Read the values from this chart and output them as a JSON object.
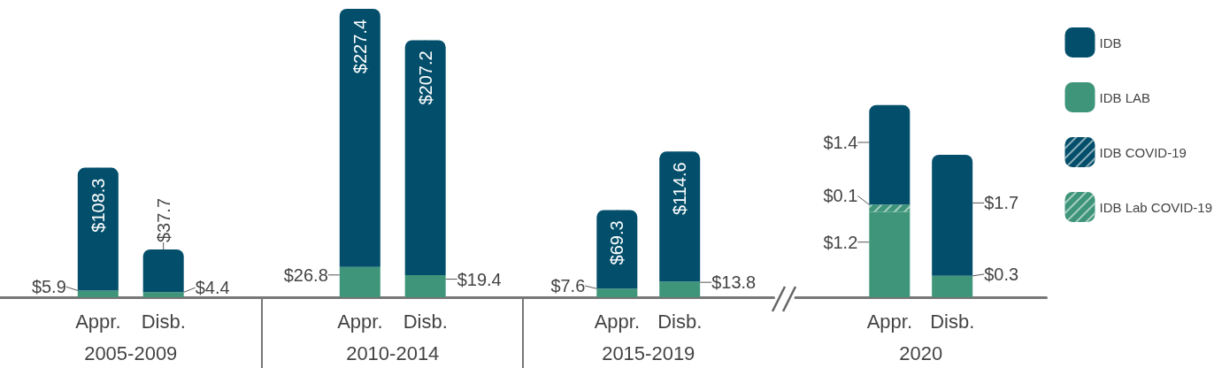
{
  "chart_data": [
    {
      "type": "bar",
      "stacked": true,
      "xlabel": "2005-2009",
      "categories": [
        "Appr.",
        "Disb."
      ],
      "series": [
        {
          "color": "#3e9579",
          "values": [
            5.9,
            4.4
          ],
          "value_labels": [
            "$5.9",
            "$4.4"
          ]
        },
        {
          "color": "#034f6b",
          "values": [
            108.3,
            37.7
          ],
          "value_labels": [
            "$108.3",
            "$37.7"
          ]
        }
      ],
      "tick_labels": "x"
    },
    {
      "type": "bar",
      "stacked": true,
      "xlabel": "2010-2014",
      "categories": [
        "Appr.",
        "Disb."
      ],
      "series": [
        {
          "color": "#3e9579",
          "values": [
            26.8,
            19.4
          ],
          "value_labels": [
            "$26.8",
            "$19.4"
          ]
        },
        {
          "color": "#034f6b",
          "values": [
            227.4,
            207.2
          ],
          "value_labels": [
            "$227.4",
            "$207.2"
          ]
        }
      ],
      "tick_labels": "x"
    },
    {
      "type": "bar",
      "stacked": true,
      "xlabel": "2015-2019",
      "categories": [
        "Appr.",
        "Disb."
      ],
      "series": [
        {
          "color": "#3e9579",
          "values": [
            7.6,
            13.8
          ],
          "value_labels": [
            "$7.6",
            "$13.8"
          ]
        },
        {
          "color": "#034f6b",
          "values": [
            69.3,
            114.6
          ],
          "value_labels": [
            "$69.3",
            "$114.6"
          ]
        }
      ],
      "tick_labels": "x"
    },
    {
      "type": "bar",
      "stacked": true,
      "xlabel": "2020",
      "categories": [
        "Appr.",
        "Disb."
      ],
      "series": [
        {
          "name": "IDB LAB",
          "color": "#3e9579",
          "values": [
            1.2,
            0.3
          ],
          "value_labels": [
            "$1.2",
            "$0.3"
          ]
        },
        {
          "name": "IDB Lab COVID-19",
          "color": "#3e9579",
          "values": [
            0.1,
            null
          ],
          "value_labels": [
            "$0.1",
            null
          ]
        },
        {
          "name": "IDB",
          "color": "#034f6b",
          "values": [
            1.4,
            1.7
          ],
          "value_labels": [
            "$1.4",
            "$1.7"
          ]
        },
        {
          "name": "IDB COVID-19",
          "color": "#034f6b",
          "values": [
            null,
            null
          ]
        }
      ],
      "tick_labels": "x",
      "legend": "right"
    }
  ]
}
